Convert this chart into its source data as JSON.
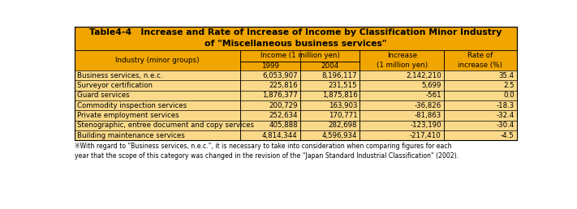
{
  "title_line1": "Table4-4   Increase and Rate of Increase of Income by Classification Minor Industry",
  "title_line2": "of \"Miscellaneous business services\"",
  "header_col": "Industry (minor groups)",
  "header_income": "Income (1 million yen)",
  "header_year1": "1999",
  "header_year2": "2004",
  "header_increase": "Increase\n(1 million yen)",
  "header_rate": "Rate of\nincrease (%)",
  "rows": [
    [
      "Business services, n.e.c.",
      "6,053,907",
      "8,196,117",
      "2,142,210",
      "35.4"
    ],
    [
      "Surveyor certification",
      "225,816",
      "231,515",
      "5,699",
      "2.5"
    ],
    [
      "Guard services",
      "1,876,377",
      "1,875,816",
      "-561",
      "0.0"
    ],
    [
      "Commodity inspection services",
      "200,729",
      "163,903",
      "-36,826",
      "-18.3"
    ],
    [
      "Private employment services",
      "252,634",
      "170,771",
      "-81,863",
      "-32.4"
    ],
    [
      "Stenographic, entree document and copy services",
      "405,888",
      "282,698",
      "-123,190",
      "-30.4"
    ],
    [
      "Building maintenance services",
      "4,814,344",
      "4,596,934",
      "-217,410",
      "-4.5"
    ]
  ],
  "footnote": "※With regard to \"Business services, n.e.c.\", it is necessary to take into consideration when comparing figures for each\nyear that the scope of this category was changed in the revision of the \"Japan Standard Industrial Classification\" (2002).",
  "header_bg": "#F0A500",
  "title_bg": "#F0A500",
  "row_bg": "#FAD98A",
  "border_color": "#000000",
  "text_color": "#000000",
  "title_text_color": "#000000"
}
